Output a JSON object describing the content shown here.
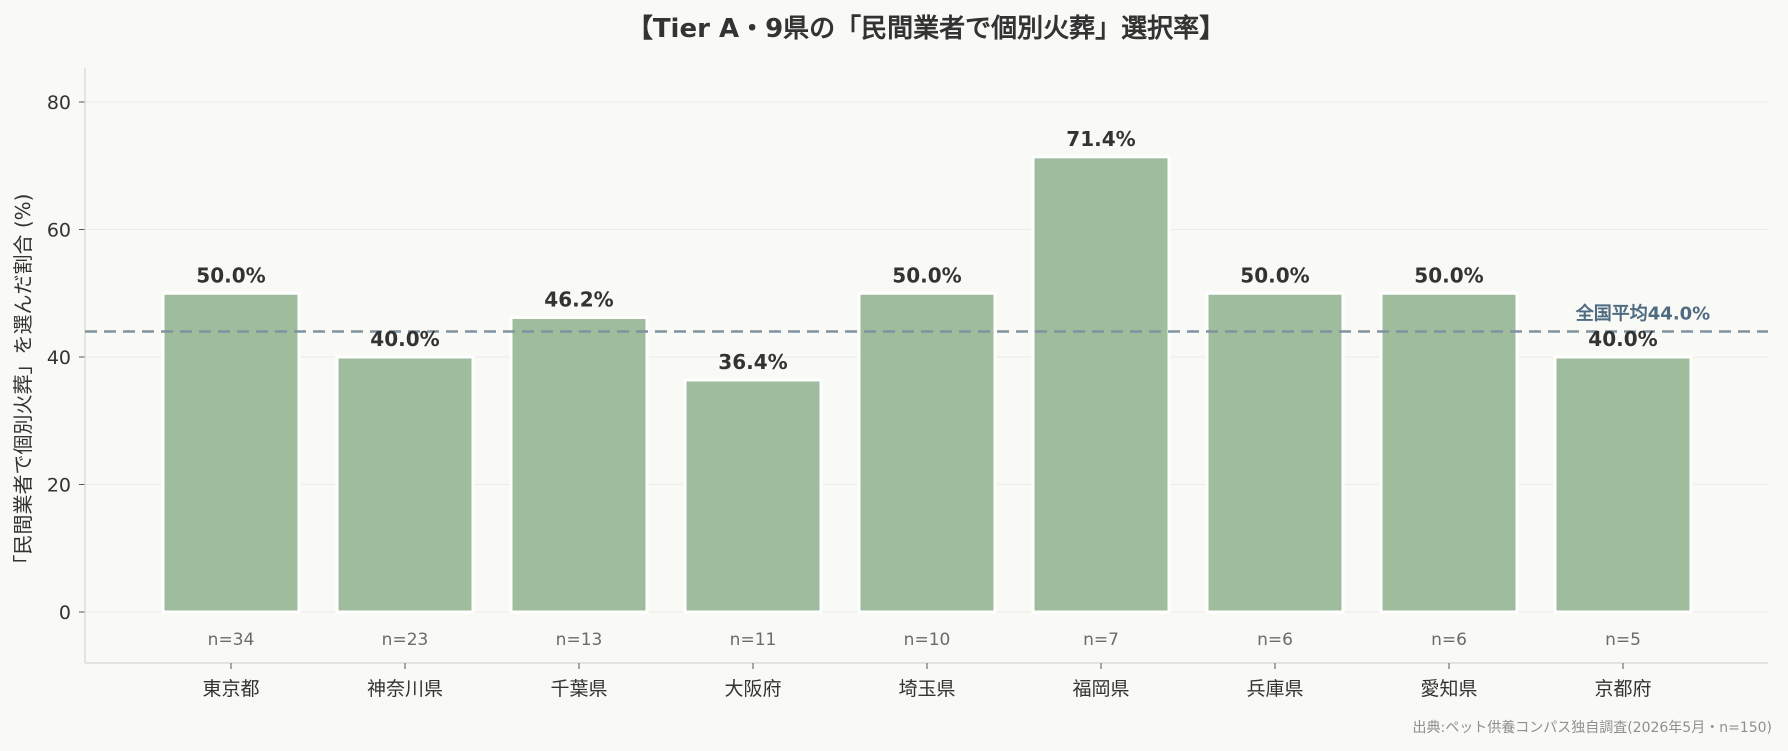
{
  "chart_data": {
    "type": "bar",
    "title": "【Tier A・9県の「民間業者で個別火葬」選択率】",
    "ylabel": "「民間業者で個別火葬」を選んだ割合 (%)",
    "xlabel": "",
    "ylim": [
      0,
      85
    ],
    "yticks": [
      0,
      20,
      40,
      60,
      80
    ],
    "grid": true,
    "categories": [
      "東京都",
      "神奈川県",
      "千葉県",
      "大阪府",
      "埼玉県",
      "福岡県",
      "兵庫県",
      "愛知県",
      "京都府"
    ],
    "values": [
      50.0,
      40.0,
      46.2,
      36.4,
      50.0,
      71.4,
      50.0,
      50.0,
      40.0
    ],
    "value_labels": [
      "50.0%",
      "40.0%",
      "46.2%",
      "36.4%",
      "50.0%",
      "71.4%",
      "50.0%",
      "50.0%",
      "40.0%"
    ],
    "sample_labels": [
      "n=34",
      "n=23",
      "n=13",
      "n=11",
      "n=10",
      "n=7",
      "n=6",
      "n=6",
      "n=5"
    ],
    "reference_line": {
      "value": 44.0,
      "label": "全国平均44.0%",
      "style": "dashed"
    },
    "source": "出典:ペット供養コンパス独自調査(2026年5月・n=150)"
  },
  "colors": {
    "background": "#f9f9f6",
    "bar": "#9fbc9d",
    "bar_edge": "#ffffff",
    "reference_line": "#7f929f",
    "reference_label": "#4f6b82",
    "grid": "#ecece8",
    "axis": "#d6d6d2",
    "text": "#333333",
    "sample_text": "#6b6b6b"
  }
}
